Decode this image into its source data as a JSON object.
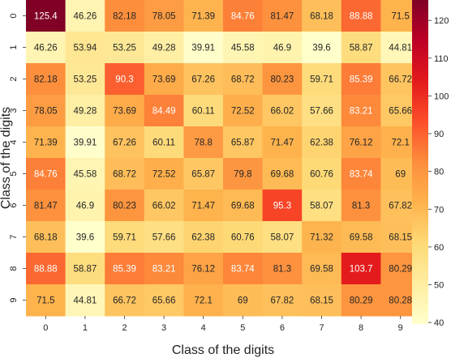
{
  "chart_data": {
    "type": "heatmap",
    "title": "",
    "xlabel": "Class of the digits",
    "ylabel": "Class of the digits",
    "x_categories": [
      "0",
      "1",
      "2",
      "3",
      "4",
      "5",
      "6",
      "7",
      "8",
      "9"
    ],
    "y_categories": [
      "0",
      "1",
      "2",
      "3",
      "4",
      "5",
      "6",
      "7",
      "8",
      "9"
    ],
    "values": [
      [
        125.4,
        46.26,
        82.18,
        78.05,
        71.39,
        84.76,
        81.47,
        68.18,
        88.88,
        71.5
      ],
      [
        46.26,
        53.94,
        53.25,
        49.28,
        39.91,
        45.58,
        46.9,
        39.6,
        58.87,
        44.81
      ],
      [
        82.18,
        53.25,
        90.3,
        73.69,
        67.26,
        68.72,
        80.23,
        59.71,
        85.39,
        66.72
      ],
      [
        78.05,
        49.28,
        73.69,
        84.49,
        60.11,
        72.52,
        66.02,
        57.66,
        83.21,
        65.66
      ],
      [
        71.39,
        39.91,
        67.26,
        60.11,
        78.8,
        65.87,
        71.47,
        62.38,
        76.12,
        72.1
      ],
      [
        84.76,
        45.58,
        68.72,
        72.52,
        65.87,
        79.8,
        69.68,
        60.76,
        83.74,
        69
      ],
      [
        81.47,
        46.9,
        80.23,
        66.02,
        71.47,
        69.68,
        95.3,
        58.07,
        81.3,
        67.82
      ],
      [
        68.18,
        39.6,
        59.71,
        57.66,
        62.38,
        60.76,
        58.07,
        71.32,
        69.58,
        68.15
      ],
      [
        88.88,
        58.87,
        85.39,
        83.21,
        76.12,
        83.74,
        81.3,
        69.58,
        103.7,
        80.29
      ],
      [
        71.5,
        44.81,
        66.72,
        65.66,
        72.1,
        69,
        67.82,
        68.15,
        80.29,
        80.28
      ]
    ],
    "colormap": "YlOrRd",
    "vmin": 39.6,
    "vmax": 125.4,
    "colorbar_ticks": [
      40,
      50,
      60,
      70,
      80,
      90,
      100,
      110,
      120
    ],
    "grid": false,
    "legend": "colorbar-right"
  }
}
